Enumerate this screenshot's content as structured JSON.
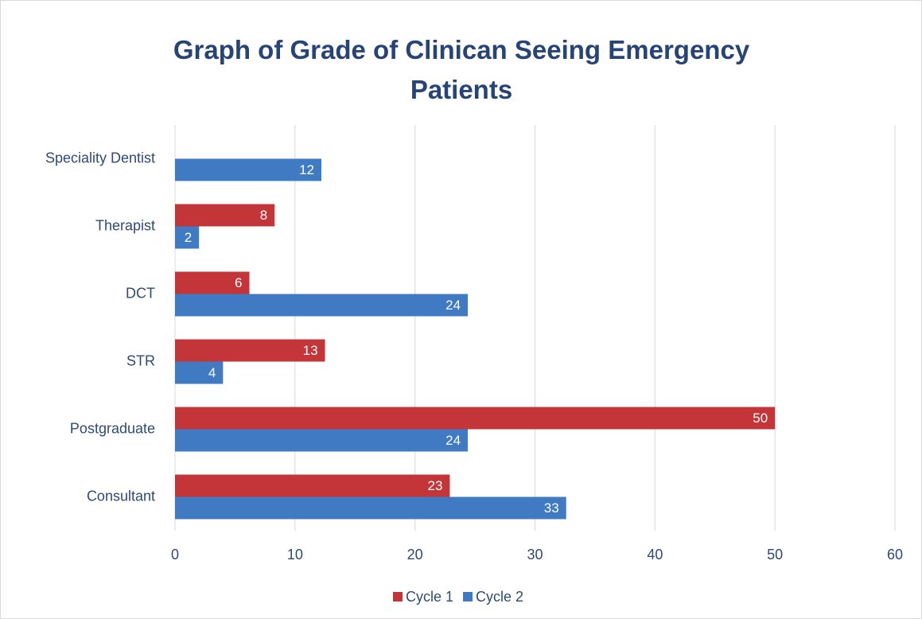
{
  "chart_data": {
    "type": "bar",
    "orientation": "horizontal",
    "title": "Graph of Grade of Clinican Seeing Emergency Patients",
    "categories": [
      "Speciality Dentist",
      "Therapist",
      "DCT",
      "STR",
      "Postgraduate",
      "Consultant"
    ],
    "series": [
      {
        "name": "Cycle 1",
        "color": "#c4353a",
        "values": [
          null,
          8.3,
          6.2,
          12.5,
          50,
          22.9
        ],
        "value_labels": [
          null,
          "8",
          "6",
          "13",
          "50",
          "23"
        ]
      },
      {
        "name": "Cycle 2",
        "color": "#3f7ac3",
        "values": [
          12.2,
          2,
          24.4,
          4,
          24.4,
          32.6
        ],
        "value_labels": [
          "12",
          "2",
          "24",
          "4",
          "24",
          "33"
        ]
      }
    ],
    "xlim": [
      0,
      60
    ],
    "xticks": [
      0,
      10,
      20,
      30,
      40,
      50,
      60
    ],
    "grid": true,
    "legend": "bottom"
  }
}
